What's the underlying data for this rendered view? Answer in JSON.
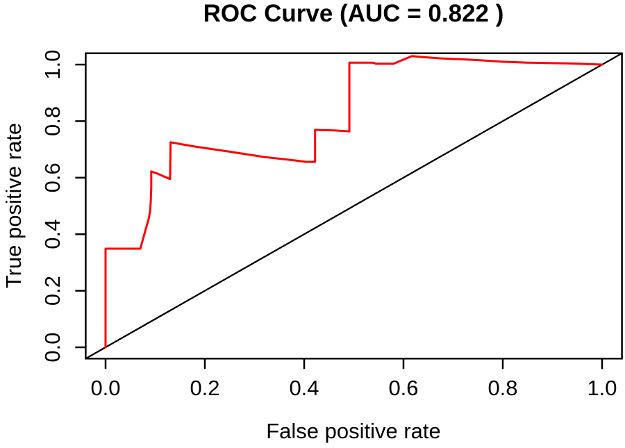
{
  "title": "ROC Curve (AUC = 0.822 )",
  "colors": {
    "background": "#ffffff",
    "axis": "#000000",
    "roc_curve": "#ff0000",
    "chance_line": "#000000"
  },
  "chart_data": {
    "type": "line",
    "title": "ROC Curve (AUC = 0.822 )",
    "auc_label": "AUC = 0.822",
    "auc": 0.822,
    "xlabel": "False positive rate",
    "ylabel": "True positive rate",
    "xlim": [
      -0.04,
      1.04
    ],
    "ylim": [
      -0.04,
      1.04
    ],
    "grid": false,
    "legend_position": "none",
    "x_ticks": {
      "values": [
        0.0,
        0.2,
        0.4,
        0.6,
        0.8,
        1.0
      ],
      "labels": [
        "0.0",
        "0.2",
        "0.4",
        "0.6",
        "0.8",
        "1.0"
      ]
    },
    "y_ticks": {
      "values": [
        0.0,
        0.2,
        0.4,
        0.6,
        0.8,
        1.0
      ],
      "labels": [
        "0.0",
        "0.2",
        "0.4",
        "0.6",
        "0.8",
        "1.0"
      ]
    },
    "series": [
      {
        "name": "roc-curve",
        "color": "#ff0000",
        "line_width": 3,
        "points": [
          [
            0.0,
            0.0
          ],
          [
            0.0,
            0.349
          ],
          [
            0.07,
            0.349
          ],
          [
            0.081,
            0.418
          ],
          [
            0.087,
            0.455
          ],
          [
            0.09,
            0.484
          ],
          [
            0.091,
            0.516
          ],
          [
            0.092,
            0.565
          ],
          [
            0.092,
            0.622
          ],
          [
            0.105,
            0.614
          ],
          [
            0.118,
            0.604
          ],
          [
            0.13,
            0.595
          ],
          [
            0.131,
            0.725
          ],
          [
            0.18,
            0.71
          ],
          [
            0.25,
            0.692
          ],
          [
            0.32,
            0.673
          ],
          [
            0.382,
            0.661
          ],
          [
            0.403,
            0.656
          ],
          [
            0.422,
            0.656
          ],
          [
            0.422,
            0.769
          ],
          [
            0.46,
            0.767
          ],
          [
            0.491,
            0.764
          ],
          [
            0.491,
            1.007
          ],
          [
            0.538,
            1.007
          ],
          [
            0.545,
            1.003
          ],
          [
            0.58,
            1.003
          ],
          [
            0.617,
            1.03
          ],
          [
            0.636,
            1.027
          ],
          [
            0.673,
            1.022
          ],
          [
            0.715,
            1.019
          ],
          [
            0.757,
            1.015
          ],
          [
            0.8,
            1.01
          ],
          [
            0.85,
            1.007
          ],
          [
            0.938,
            1.004
          ],
          [
            1.0,
            1.0
          ]
        ]
      },
      {
        "name": "chance-diagonal",
        "color": "#000000",
        "line_width": 2.3,
        "points": [
          [
            -0.04,
            -0.04
          ],
          [
            1.04,
            1.04
          ]
        ]
      }
    ]
  }
}
